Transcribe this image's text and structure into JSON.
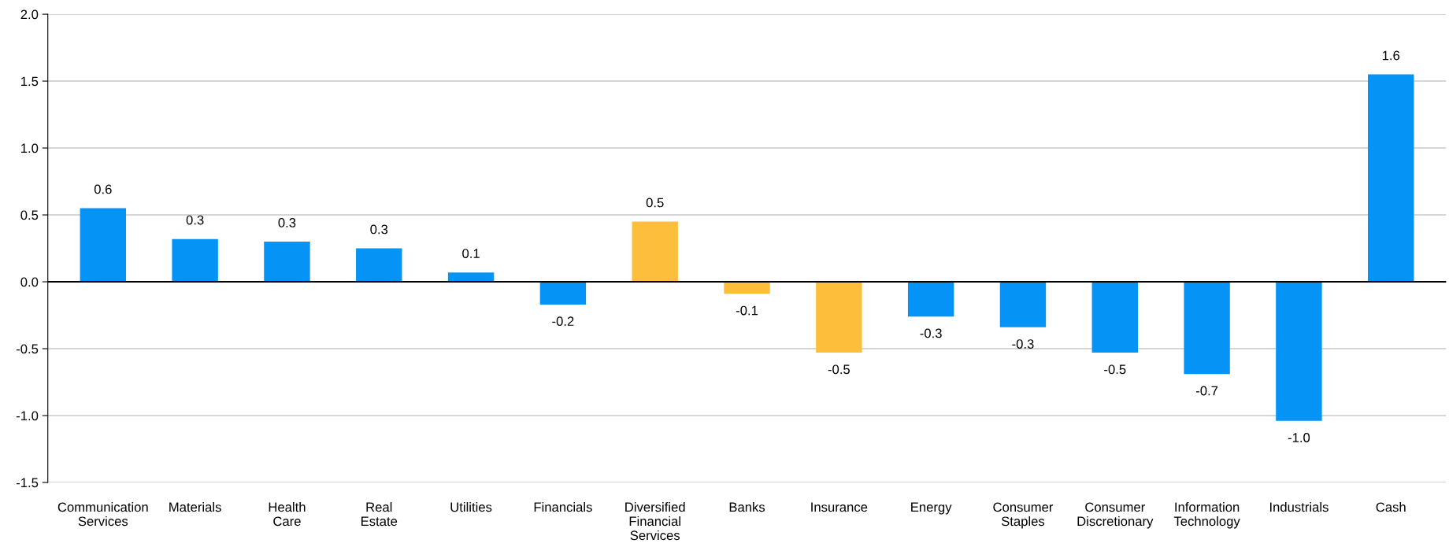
{
  "chart_data": {
    "type": "bar",
    "categories": [
      "Communication Services",
      "Materials",
      "Health Care",
      "Real Estate",
      "Utilities",
      "Financials",
      "Diversified Financial Services",
      "Banks",
      "Insurance",
      "Energy",
      "Consumer Staples",
      "Consumer Discretionary",
      "Information Technology",
      "Industrials",
      "Cash"
    ],
    "values": [
      0.55,
      0.32,
      0.3,
      0.25,
      0.07,
      -0.17,
      0.45,
      -0.09,
      -0.53,
      -0.26,
      -0.34,
      -0.53,
      -0.69,
      -1.04,
      1.55
    ],
    "colors": [
      "#0593f5",
      "#0593f5",
      "#0593f5",
      "#0593f5",
      "#0593f5",
      "#0593f5",
      "#fdbf3b",
      "#fdbf3b",
      "#fdbf3b",
      "#0593f5",
      "#0593f5",
      "#0593f5",
      "#0593f5",
      "#0593f5",
      "#0593f5"
    ],
    "value_labels": [
      "0.6",
      "0.3",
      "0.3",
      "0.3",
      "0.1",
      "-0.2",
      "0.5",
      "-0.1",
      "-0.5",
      "-0.3",
      "-0.3",
      "-0.5",
      "-0.7",
      "-1.0",
      "1.6"
    ],
    "ylim": [
      -1.5,
      2.0
    ],
    "yticks": [
      {
        "value": -1.5,
        "label": "-1.5"
      },
      {
        "value": -1.0,
        "label": "-1.0"
      },
      {
        "value": -0.5,
        "label": "-0.5"
      },
      {
        "value": 0,
        "label": "0.0"
      },
      {
        "value": 0.5,
        "label": "0.5"
      },
      {
        "value": 1.0,
        "label": "1.0"
      },
      {
        "value": 1.5,
        "label": "1.5"
      },
      {
        "value": 2.0,
        "label": "2.0"
      }
    ],
    "ref_lines": [
      {
        "axis": "y",
        "value": 0,
        "color": "#000000"
      }
    ],
    "grid": "y",
    "legend": false
  }
}
